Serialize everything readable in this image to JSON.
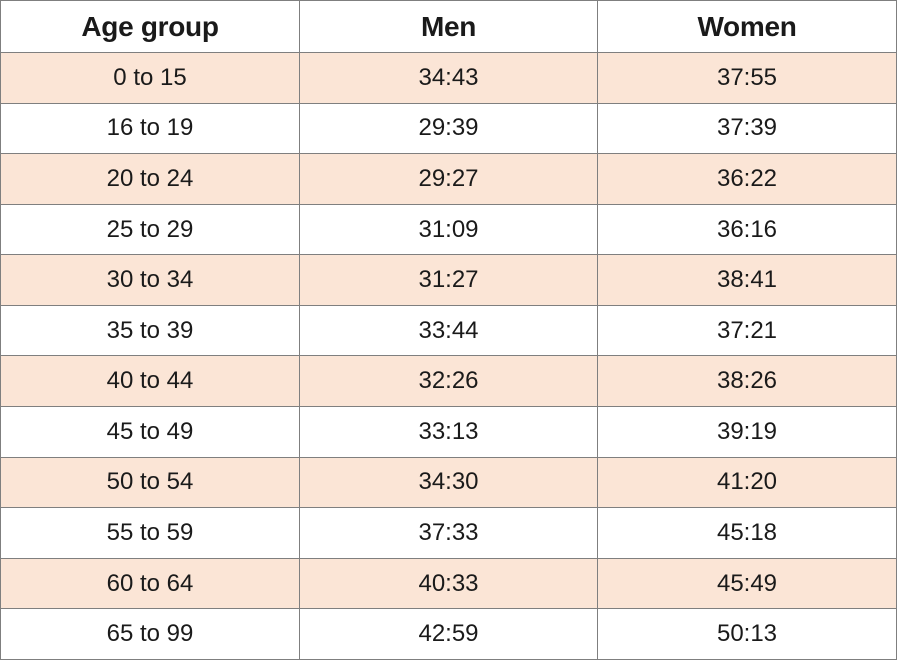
{
  "table": {
    "headers": [
      "Age group",
      "Men",
      "Women"
    ],
    "rows": [
      [
        "0 to 15",
        "34:43",
        "37:55"
      ],
      [
        "16 to 19",
        "29:39",
        "37:39"
      ],
      [
        "20 to 24",
        "29:27",
        "36:22"
      ],
      [
        "25 to 29",
        "31:09",
        "36:16"
      ],
      [
        "30 to 34",
        "31:27",
        "38:41"
      ],
      [
        "35 to 39",
        "33:44",
        "37:21"
      ],
      [
        "40 to 44",
        "32:26",
        "38:26"
      ],
      [
        "45 to 49",
        "33:13",
        "39:19"
      ],
      [
        "50 to 54",
        "34:30",
        "41:20"
      ],
      [
        "55 to 59",
        "37:33",
        "45:18"
      ],
      [
        "60 to 64",
        "40:33",
        "45:49"
      ],
      [
        "65 to 99",
        "42:59",
        "50:13"
      ]
    ],
    "colors": {
      "band": "#fbe5d6",
      "plain": "#ffffff",
      "border": "#7f7f7f"
    }
  }
}
